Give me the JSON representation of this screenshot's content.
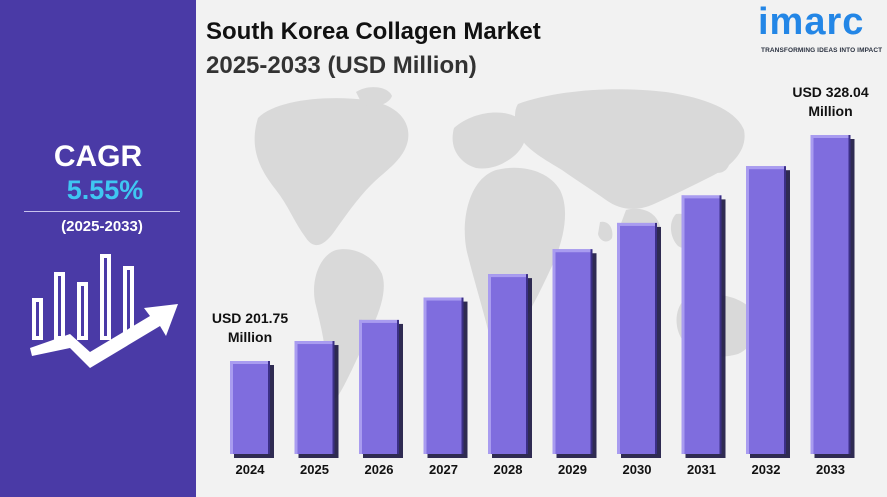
{
  "sidebar": {
    "cagr_label": "CAGR",
    "cagr_value": "5.55%",
    "period": "(2025-2033)"
  },
  "header": {
    "title_line1": "South Korea Collagen Market",
    "title_line2": "2025-2033 (USD Million)"
  },
  "logo": {
    "word": "imarc",
    "tagline": "TRANSFORMING IDEAS INTO IMPACT"
  },
  "icons": {
    "growth": "bar-chart-growth-arrow-icon",
    "map": "world-map-icon"
  },
  "colors": {
    "sidebar": "#4a3aa6",
    "cagr_value": "#3fc6f2",
    "bar_fill": "#7f6dde",
    "bar_light": "#a99cf0",
    "bar_dark": "#3b2f86",
    "logo": "#2386e6"
  },
  "chart_data": {
    "type": "bar",
    "categories": [
      "2024",
      "2025",
      "2026",
      "2027",
      "2028",
      "2029",
      "2030",
      "2031",
      "2032",
      "2033"
    ],
    "values": [
      201.75,
      212.9,
      224.7,
      237.2,
      250.3,
      264.2,
      278.9,
      294.3,
      310.6,
      328.04
    ],
    "annotations": [
      {
        "category": "2024",
        "line1": "USD 201.75",
        "line2": "Million"
      },
      {
        "category": "2033",
        "line1": "USD 328.04",
        "line2": "Million"
      }
    ],
    "ylim": [
      150,
      340
    ],
    "legend": "none",
    "grid": false
  }
}
